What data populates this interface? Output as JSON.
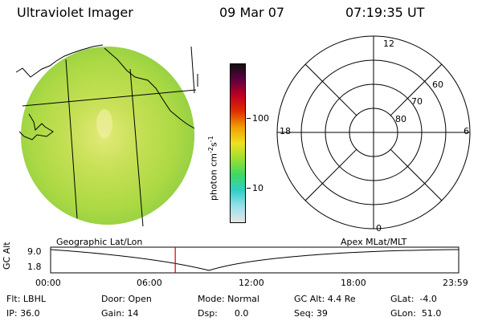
{
  "header": {
    "instrument": "Ultraviolet Imager",
    "date": "09 Mar 07",
    "time": "07:19:35 UT"
  },
  "colorbar": {
    "label": "photon cm-2s-1",
    "tick_labels": [
      "100",
      "10"
    ],
    "stops": [
      "#e6e6e6",
      "#9ae0ea",
      "#2fd0c8",
      "#3ed864",
      "#9ae030",
      "#f0e020",
      "#f0a000",
      "#e03000",
      "#c00020",
      "#600040",
      "#101010"
    ]
  },
  "polar": {
    "lat_labels": [
      "60",
      "70",
      "80"
    ],
    "mlt_labels": [
      "12",
      "18",
      "6",
      "0"
    ]
  },
  "strip": {
    "ylabel": "GC Alt",
    "ytick_labels": [
      "9.0",
      "1.8"
    ],
    "xtick_labels": [
      "00:00",
      "06:00",
      "12:00",
      "18:00",
      "23:59"
    ],
    "left_caption": "Geographic Lat/Lon",
    "right_caption": "Apex MLat/MLT",
    "marker_color": "#d00000",
    "marker_hours": 7.33
  },
  "status": {
    "flt": "Flt: LBHL",
    "ip": "IP: 36.0",
    "door": "Door: Open",
    "gain": "Gain: 14",
    "mode": "Mode: Normal",
    "dsp": "Dsp:      0.0",
    "gcalt": "GC Alt: 4.4 Re",
    "seq": "Seq: 39",
    "glat": "GLat:  -4.0",
    "glon": "GLon:  51.0"
  }
}
